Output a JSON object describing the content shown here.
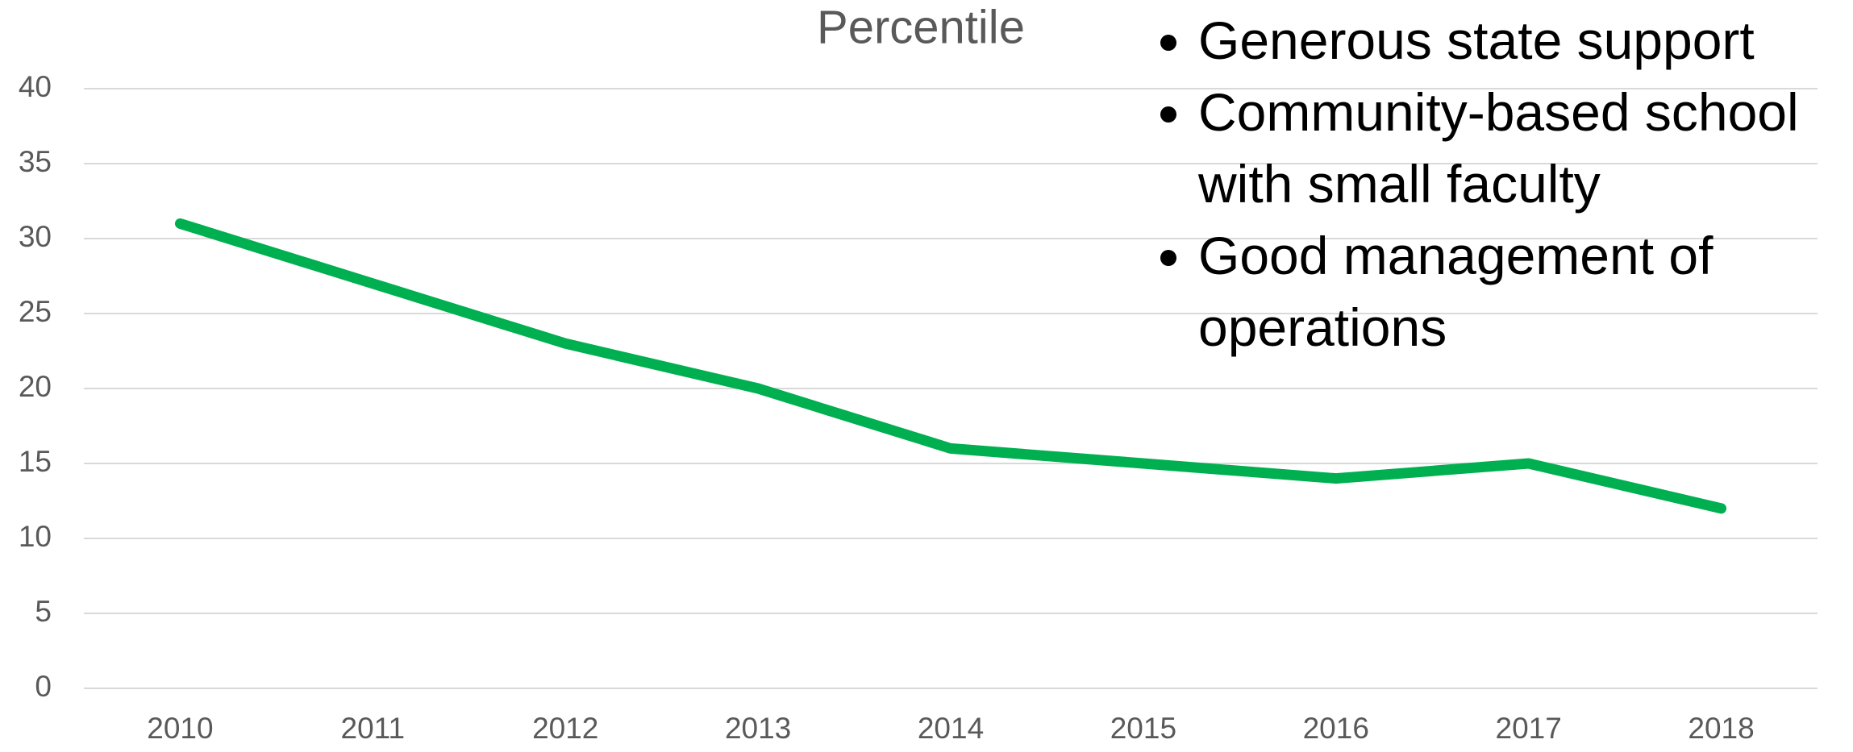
{
  "chart_data": {
    "type": "line",
    "title": "Percentile",
    "categories": [
      "2010",
      "2011",
      "2012",
      "2013",
      "2014",
      "2015",
      "2016",
      "2017",
      "2018"
    ],
    "series": [
      {
        "name": "Percentile",
        "color": "#00b050",
        "values": [
          31,
          27,
          23,
          20,
          16,
          15,
          14,
          15,
          12
        ]
      }
    ],
    "ylim": [
      0,
      40
    ],
    "yticks": [
      0,
      5,
      10,
      15,
      20,
      25,
      30,
      35,
      40
    ],
    "grid": true,
    "annotations": [
      "Generous state support",
      "Community-based school with small faculty",
      "Good management of operations"
    ]
  }
}
